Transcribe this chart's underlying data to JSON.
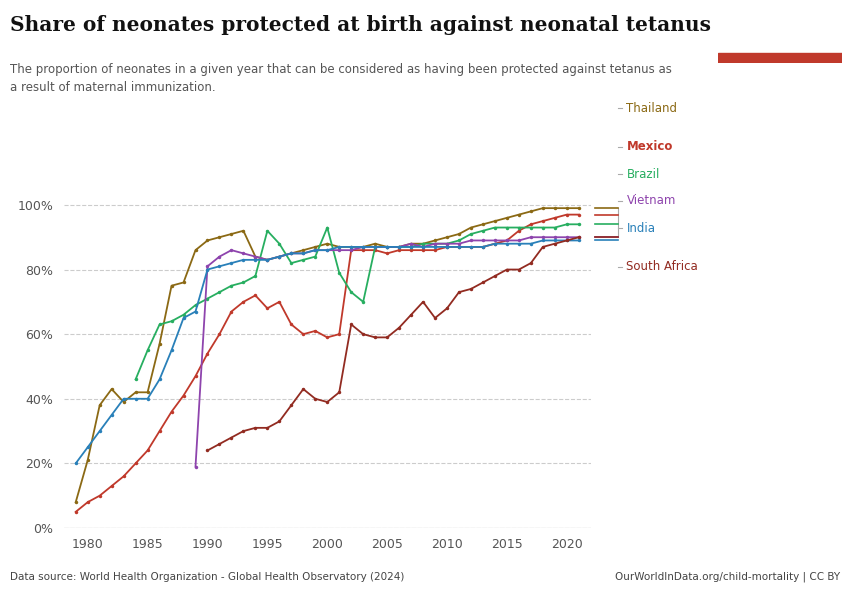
{
  "title": "Share of neonates protected at birth against neonatal tetanus",
  "subtitle": "The proportion of neonates in a given year that can be considered as having been protected against tetanus as\na result of maternal immunization.",
  "source": "Data source: World Health Organization - Global Health Observatory (2024)",
  "source_right": "OurWorldInData.org/child-mortality | CC BY",
  "background_color": "#ffffff",
  "grid_color": "#cccccc",
  "series": [
    {
      "name": "Thailand",
      "color": "#8B6914",
      "data": [
        [
          1979,
          0.08
        ],
        [
          1980,
          0.21
        ],
        [
          1981,
          0.38
        ],
        [
          1982,
          0.43
        ],
        [
          1983,
          0.39
        ],
        [
          1984,
          0.42
        ],
        [
          1985,
          0.42
        ],
        [
          1986,
          0.57
        ],
        [
          1987,
          0.75
        ],
        [
          1988,
          0.76
        ],
        [
          1989,
          0.86
        ],
        [
          1990,
          0.89
        ],
        [
          1991,
          0.9
        ],
        [
          1992,
          0.91
        ],
        [
          1993,
          0.92
        ],
        [
          1994,
          0.84
        ],
        [
          1995,
          0.83
        ],
        [
          1996,
          0.84
        ],
        [
          1997,
          0.85
        ],
        [
          1998,
          0.86
        ],
        [
          1999,
          0.87
        ],
        [
          2000,
          0.88
        ],
        [
          2001,
          0.87
        ],
        [
          2002,
          0.87
        ],
        [
          2003,
          0.87
        ],
        [
          2004,
          0.88
        ],
        [
          2005,
          0.87
        ],
        [
          2006,
          0.87
        ],
        [
          2007,
          0.88
        ],
        [
          2008,
          0.88
        ],
        [
          2009,
          0.89
        ],
        [
          2010,
          0.9
        ],
        [
          2011,
          0.91
        ],
        [
          2012,
          0.93
        ],
        [
          2013,
          0.94
        ],
        [
          2014,
          0.95
        ],
        [
          2015,
          0.96
        ],
        [
          2016,
          0.97
        ],
        [
          2017,
          0.98
        ],
        [
          2018,
          0.99
        ],
        [
          2019,
          0.99
        ],
        [
          2020,
          0.99
        ],
        [
          2021,
          0.99
        ]
      ]
    },
    {
      "name": "Mexico",
      "color": "#c0392b",
      "data": [
        [
          1979,
          0.05
        ],
        [
          1980,
          0.08
        ],
        [
          1981,
          0.1
        ],
        [
          1982,
          0.13
        ],
        [
          1983,
          0.16
        ],
        [
          1984,
          0.2
        ],
        [
          1985,
          0.24
        ],
        [
          1986,
          0.3
        ],
        [
          1987,
          0.36
        ],
        [
          1988,
          0.41
        ],
        [
          1989,
          0.47
        ],
        [
          1990,
          0.54
        ],
        [
          1991,
          0.6
        ],
        [
          1992,
          0.67
        ],
        [
          1993,
          0.7
        ],
        [
          1994,
          0.72
        ],
        [
          1995,
          0.68
        ],
        [
          1996,
          0.7
        ],
        [
          1997,
          0.63
        ],
        [
          1998,
          0.6
        ],
        [
          1999,
          0.61
        ],
        [
          2000,
          0.59
        ],
        [
          2001,
          0.6
        ],
        [
          2002,
          0.86
        ],
        [
          2003,
          0.86
        ],
        [
          2004,
          0.86
        ],
        [
          2005,
          0.85
        ],
        [
          2006,
          0.86
        ],
        [
          2007,
          0.86
        ],
        [
          2008,
          0.86
        ],
        [
          2009,
          0.86
        ],
        [
          2010,
          0.87
        ],
        [
          2011,
          0.87
        ],
        [
          2012,
          0.87
        ],
        [
          2013,
          0.87
        ],
        [
          2014,
          0.88
        ],
        [
          2015,
          0.89
        ],
        [
          2016,
          0.92
        ],
        [
          2017,
          0.94
        ],
        [
          2018,
          0.95
        ],
        [
          2019,
          0.96
        ],
        [
          2020,
          0.97
        ],
        [
          2021,
          0.97
        ]
      ]
    },
    {
      "name": "Brazil",
      "color": "#27ae60",
      "data": [
        [
          1984,
          0.46
        ],
        [
          1985,
          0.55
        ],
        [
          1986,
          0.63
        ],
        [
          1987,
          0.64
        ],
        [
          1988,
          0.66
        ],
        [
          1989,
          0.69
        ],
        [
          1990,
          0.71
        ],
        [
          1991,
          0.73
        ],
        [
          1992,
          0.75
        ],
        [
          1993,
          0.76
        ],
        [
          1994,
          0.78
        ],
        [
          1995,
          0.92
        ],
        [
          1996,
          0.88
        ],
        [
          1997,
          0.82
        ],
        [
          1998,
          0.83
        ],
        [
          1999,
          0.84
        ],
        [
          2000,
          0.93
        ],
        [
          2001,
          0.79
        ],
        [
          2002,
          0.73
        ],
        [
          2003,
          0.7
        ],
        [
          2004,
          0.87
        ],
        [
          2005,
          0.87
        ],
        [
          2006,
          0.87
        ],
        [
          2007,
          0.87
        ],
        [
          2008,
          0.88
        ],
        [
          2009,
          0.88
        ],
        [
          2010,
          0.88
        ],
        [
          2011,
          0.89
        ],
        [
          2012,
          0.91
        ],
        [
          2013,
          0.92
        ],
        [
          2014,
          0.93
        ],
        [
          2015,
          0.93
        ],
        [
          2016,
          0.93
        ],
        [
          2017,
          0.93
        ],
        [
          2018,
          0.93
        ],
        [
          2019,
          0.93
        ],
        [
          2020,
          0.94
        ],
        [
          2021,
          0.94
        ]
      ]
    },
    {
      "name": "Vietnam",
      "color": "#8e44ad",
      "data": [
        [
          1989,
          0.19
        ],
        [
          1990,
          0.81
        ],
        [
          1991,
          0.84
        ],
        [
          1992,
          0.86
        ],
        [
          1993,
          0.85
        ],
        [
          1994,
          0.84
        ],
        [
          1995,
          0.83
        ],
        [
          1996,
          0.84
        ],
        [
          1997,
          0.85
        ],
        [
          1998,
          0.85
        ],
        [
          1999,
          0.86
        ],
        [
          2000,
          0.86
        ],
        [
          2001,
          0.86
        ],
        [
          2002,
          0.86
        ],
        [
          2003,
          0.87
        ],
        [
          2004,
          0.87
        ],
        [
          2005,
          0.87
        ],
        [
          2006,
          0.87
        ],
        [
          2007,
          0.88
        ],
        [
          2008,
          0.87
        ],
        [
          2009,
          0.88
        ],
        [
          2010,
          0.88
        ],
        [
          2011,
          0.88
        ],
        [
          2012,
          0.89
        ],
        [
          2013,
          0.89
        ],
        [
          2014,
          0.89
        ],
        [
          2015,
          0.89
        ],
        [
          2016,
          0.89
        ],
        [
          2017,
          0.9
        ],
        [
          2018,
          0.9
        ],
        [
          2019,
          0.9
        ],
        [
          2020,
          0.9
        ],
        [
          2021,
          0.9
        ]
      ]
    },
    {
      "name": "India",
      "color": "#2980b9",
      "data": [
        [
          1979,
          0.2
        ],
        [
          1980,
          0.25
        ],
        [
          1981,
          0.3
        ],
        [
          1982,
          0.35
        ],
        [
          1983,
          0.4
        ],
        [
          1984,
          0.4
        ],
        [
          1985,
          0.4
        ],
        [
          1986,
          0.46
        ],
        [
          1987,
          0.55
        ],
        [
          1988,
          0.65
        ],
        [
          1989,
          0.67
        ],
        [
          1990,
          0.8
        ],
        [
          1991,
          0.81
        ],
        [
          1992,
          0.82
        ],
        [
          1993,
          0.83
        ],
        [
          1994,
          0.83
        ],
        [
          1995,
          0.83
        ],
        [
          1996,
          0.84
        ],
        [
          1997,
          0.85
        ],
        [
          1998,
          0.85
        ],
        [
          1999,
          0.86
        ],
        [
          2000,
          0.86
        ],
        [
          2001,
          0.87
        ],
        [
          2002,
          0.87
        ],
        [
          2003,
          0.87
        ],
        [
          2004,
          0.87
        ],
        [
          2005,
          0.87
        ],
        [
          2006,
          0.87
        ],
        [
          2007,
          0.87
        ],
        [
          2008,
          0.87
        ],
        [
          2009,
          0.87
        ],
        [
          2010,
          0.87
        ],
        [
          2011,
          0.87
        ],
        [
          2012,
          0.87
        ],
        [
          2013,
          0.87
        ],
        [
          2014,
          0.88
        ],
        [
          2015,
          0.88
        ],
        [
          2016,
          0.88
        ],
        [
          2017,
          0.88
        ],
        [
          2018,
          0.89
        ],
        [
          2019,
          0.89
        ],
        [
          2020,
          0.89
        ],
        [
          2021,
          0.89
        ]
      ]
    },
    {
      "name": "South Africa",
      "color": "#922b21",
      "data": [
        [
          1990,
          0.24
        ],
        [
          1991,
          0.26
        ],
        [
          1992,
          0.28
        ],
        [
          1993,
          0.3
        ],
        [
          1994,
          0.31
        ],
        [
          1995,
          0.31
        ],
        [
          1996,
          0.33
        ],
        [
          1997,
          0.38
        ],
        [
          1998,
          0.43
        ],
        [
          1999,
          0.4
        ],
        [
          2000,
          0.39
        ],
        [
          2001,
          0.42
        ],
        [
          2002,
          0.63
        ],
        [
          2003,
          0.6
        ],
        [
          2004,
          0.59
        ],
        [
          2005,
          0.59
        ],
        [
          2006,
          0.62
        ],
        [
          2007,
          0.66
        ],
        [
          2008,
          0.7
        ],
        [
          2009,
          0.65
        ],
        [
          2010,
          0.68
        ],
        [
          2011,
          0.73
        ],
        [
          2012,
          0.74
        ],
        [
          2013,
          0.76
        ],
        [
          2014,
          0.78
        ],
        [
          2015,
          0.8
        ],
        [
          2016,
          0.8
        ],
        [
          2017,
          0.82
        ],
        [
          2018,
          0.87
        ],
        [
          2019,
          0.88
        ],
        [
          2020,
          0.89
        ],
        [
          2021,
          0.9
        ]
      ]
    }
  ]
}
